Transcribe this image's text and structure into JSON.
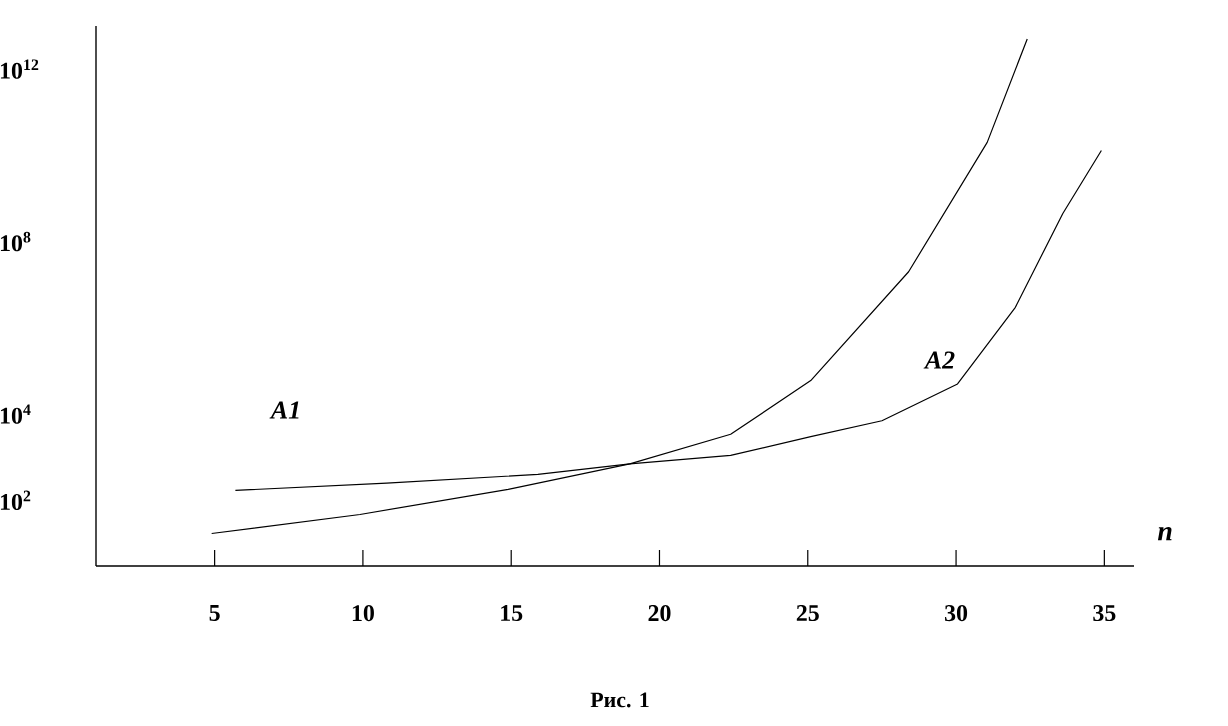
{
  "chart_data": {
    "type": "line",
    "xlabel": "n",
    "log": "y",
    "marker": "none",
    "xlim": [
      1,
      36
    ],
    "ylim": [
      3,
      10000000000000.0
    ],
    "xticks": [
      5,
      10,
      15,
      20,
      25,
      30,
      35
    ],
    "yticks": [
      {
        "value": 100,
        "label": "10$^{2}$"
      },
      {
        "value": 10000,
        "label": "10$^{4}$"
      },
      {
        "value": 100000000,
        "label": "10$^{8}$"
      },
      {
        "value": 1000000000000,
        "label": "10$^{12}$"
      }
    ],
    "series": [
      {
        "color": "#000000",
        "x": [
          5.7,
          10.8,
          15.9,
          19.0,
          22.4,
          25.1,
          27.5,
          30.05,
          32.0,
          33.6,
          34.9
        ],
        "values": [
          170,
          250,
          400,
          700,
          1100,
          3000,
          7000,
          50000,
          3000000,
          450000000,
          13000000000
        ]
      },
      {
        "color": "#000000",
        "x": [
          4.9,
          9.9,
          14.9,
          19.0,
          22.4,
          25.1,
          28.4,
          31.05,
          32.4
        ],
        "values": [
          17,
          47,
          180,
          700,
          3400,
          60000,
          20000000,
          20000000000,
          5000000000000
        ]
      }
    ],
    "annotations": [
      "A1",
      "A2",
      "Рис. 1"
    ]
  }
}
